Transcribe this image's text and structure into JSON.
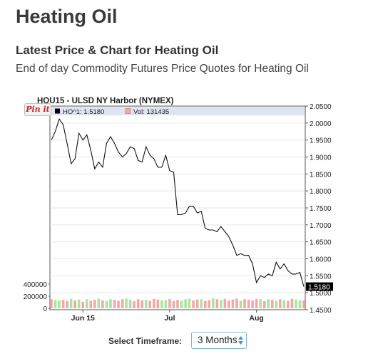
{
  "page": {
    "title": "Heating Oil",
    "subtitle": "Latest Price & Chart for Heating Oil",
    "description": "End of day Commodity Futures Price Quotes for Heating Oil"
  },
  "share": {
    "pinit_label": "Pin it"
  },
  "timeframe": {
    "label": "Select Timeframe:",
    "selected": "3 Months"
  },
  "chart_data": {
    "type": "line",
    "title": "HOU15 - ULSD NY Harbor (NYMEX)",
    "legend": {
      "price_label": "HO^1: 1.5180",
      "volume_label": "Vol: 131435",
      "price_color": "#000000",
      "volume_color": "#f4a7a7"
    },
    "last_value_label": "1.5180",
    "price_axis": {
      "min": 1.45,
      "max": 2.05,
      "step": 0.05,
      "tick_labels": [
        "2.0500",
        "2.0000",
        "1.9500",
        "1.9000",
        "1.8500",
        "1.8000",
        "1.7500",
        "1.7000",
        "1.6500",
        "1.6000",
        "1.5500",
        "1.5000",
        "1.4500"
      ]
    },
    "volume_axis": {
      "min": 0,
      "max": 400000,
      "tick_labels": [
        "400000",
        "200000",
        "0"
      ]
    },
    "x_labels": [
      {
        "label": "Jun 15",
        "index": 8
      },
      {
        "label": "Jul",
        "index": 30
      },
      {
        "label": "Aug",
        "index": 52
      }
    ],
    "series": [
      {
        "values": [
          1.95,
          1.975,
          2.012,
          1.995,
          1.94,
          1.88,
          1.895,
          1.97,
          1.95,
          1.965,
          1.92,
          1.865,
          1.885,
          1.87,
          1.94,
          1.96,
          1.94,
          1.915,
          1.9,
          1.91,
          1.93,
          1.925,
          1.89,
          1.885,
          1.93,
          1.905,
          1.895,
          1.87,
          1.87,
          1.905,
          1.86,
          1.855,
          1.73,
          1.73,
          1.735,
          1.755,
          1.755,
          1.735,
          1.74,
          1.69,
          1.685,
          1.685,
          1.68,
          1.695,
          1.68,
          1.665,
          1.64,
          1.61,
          1.615,
          1.61,
          1.61,
          1.585,
          1.53,
          1.55,
          1.545,
          1.555,
          1.55,
          1.59,
          1.57,
          1.585,
          1.565,
          1.555,
          1.555,
          1.56,
          1.518
        ]
      },
      {
        "name": "Vol",
        "volumes": [
          150000,
          135000,
          125000,
          140000,
          120000,
          155000,
          130000,
          145000,
          110000,
          150000,
          125000,
          140000,
          160000,
          130000,
          120000,
          150000,
          140000,
          125000,
          150000,
          160000,
          145000,
          120000,
          150000,
          130000,
          140000,
          125000,
          155000,
          145000,
          130000,
          135000,
          150000,
          120000,
          140000,
          125000,
          150000,
          160000,
          130000,
          145000,
          150000,
          120000,
          135000,
          165000,
          150000,
          140000,
          155000,
          130000,
          145000,
          160000,
          125000,
          150000,
          140000,
          130000,
          155000,
          150000,
          120000,
          150000,
          140000,
          125000,
          150000,
          135000,
          120000,
          155000,
          145000,
          130000,
          131435
        ],
        "volume_up": [
          false,
          true,
          true,
          false,
          false,
          true,
          false,
          true,
          false,
          true,
          false,
          false,
          true,
          false,
          true,
          true,
          false,
          false,
          false,
          true,
          true,
          false,
          false,
          false,
          true,
          false,
          false,
          false,
          true,
          true,
          false,
          false,
          false,
          true,
          true,
          true,
          false,
          false,
          true,
          false,
          false,
          true,
          false,
          true,
          false,
          false,
          false,
          false,
          true,
          false,
          false,
          false,
          false,
          true,
          false,
          true,
          false,
          true,
          false,
          true,
          false,
          false,
          true,
          true,
          false
        ]
      }
    ]
  }
}
